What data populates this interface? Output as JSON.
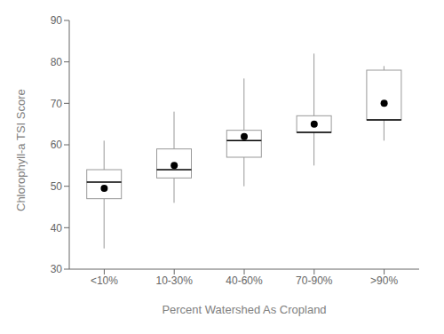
{
  "chart_data": {
    "type": "box",
    "categories": [
      "<10%",
      "10-30%",
      "40-60%",
      "70-90%",
      ">90%"
    ],
    "min": [
      35,
      46,
      50,
      55,
      61
    ],
    "q1": [
      47,
      52,
      57,
      63,
      66
    ],
    "median": [
      51,
      54,
      61,
      63,
      66
    ],
    "q3": [
      54,
      59,
      63.5,
      67,
      78
    ],
    "max": [
      61,
      68,
      76,
      82,
      79
    ],
    "mean": [
      49.5,
      55,
      62,
      65,
      70
    ],
    "xlabel": "Percent Watershed As Cropland",
    "ylabel": "Chlorophyll-a TSI Score",
    "ylim": [
      30,
      90
    ],
    "yticks": [
      30,
      40,
      50,
      60,
      70,
      80,
      90
    ],
    "color": "#999999",
    "marker": "circle"
  }
}
